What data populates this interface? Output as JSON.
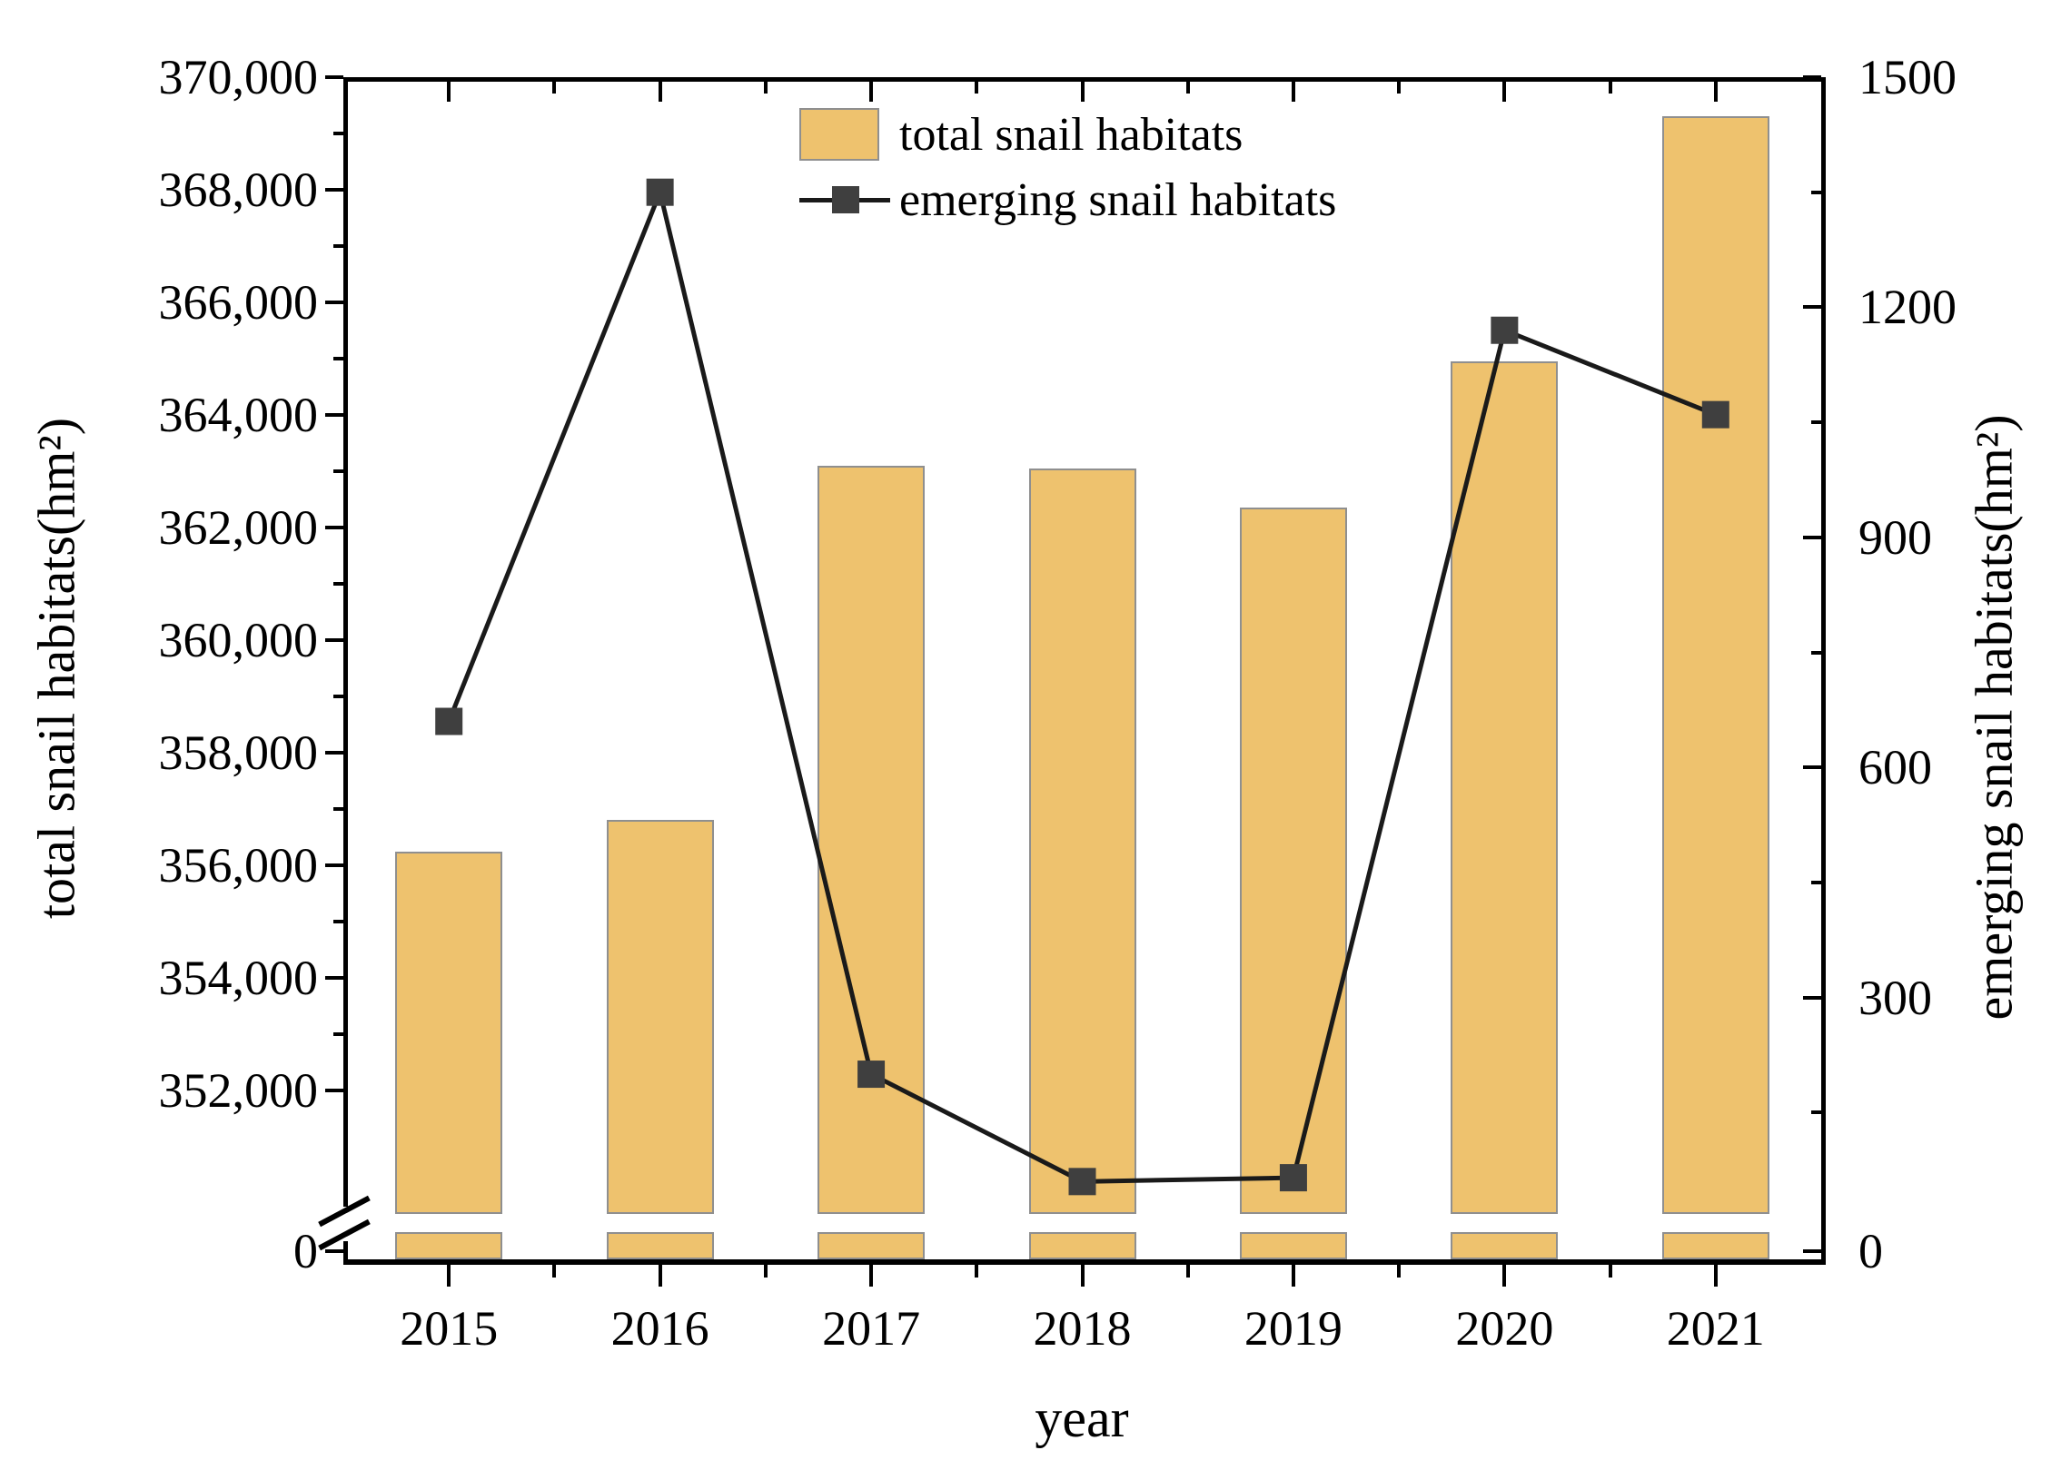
{
  "legend": {
    "items": [
      {
        "label": "total snail habitats",
        "swatch": "bar"
      },
      {
        "label": "emerging snail habitats",
        "swatch": "line-square-marker"
      }
    ]
  },
  "chart_data": {
    "type": "bar+line",
    "categories": [
      "2015",
      "2016",
      "2017",
      "2018",
      "2019",
      "2020",
      "2021"
    ],
    "series": [
      {
        "name": "total snail habitats",
        "type": "bar",
        "axis": "left",
        "color": "#eec26e",
        "edge_color": "#8f8f8f",
        "values": [
          356250,
          356800,
          363100,
          363050,
          362350,
          364950,
          369300
        ]
      },
      {
        "name": "emerging snail habitats",
        "type": "line",
        "axis": "right",
        "color": "#1a1a1a",
        "marker": "square",
        "marker_color": "#3f3f3f",
        "values": [
          660,
          1350,
          200,
          60,
          65,
          1170,
          1060
        ]
      }
    ],
    "left_axis": {
      "title": "total snail habitats(hm²)",
      "range": [
        352000,
        370000
      ],
      "zero_label": "0",
      "axis_break": {
        "between": [
          0,
          352000
        ]
      },
      "major_ticks": [
        {
          "value": 352000,
          "label": "352,000"
        },
        {
          "value": 354000,
          "label": "354,000"
        },
        {
          "value": 356000,
          "label": "356,000"
        },
        {
          "value": 358000,
          "label": "358,000"
        },
        {
          "value": 360000,
          "label": "360,000"
        },
        {
          "value": 362000,
          "label": "362,000"
        },
        {
          "value": 364000,
          "label": "364,000"
        },
        {
          "value": 366000,
          "label": "366,000"
        },
        {
          "value": 368000,
          "label": "368,000"
        },
        {
          "value": 370000,
          "label": "370,000"
        }
      ],
      "minor_values": [
        353000,
        355000,
        357000,
        359000,
        361000,
        363000,
        365000,
        367000,
        369000
      ]
    },
    "right_axis": {
      "title": "emerging snail habitats(hm²)",
      "range": [
        0,
        1500
      ],
      "zero_label": "0",
      "major_ticks": [
        {
          "value": 300,
          "label": "300"
        },
        {
          "value": 600,
          "label": "600"
        },
        {
          "value": 900,
          "label": "900"
        },
        {
          "value": 1200,
          "label": "1200"
        },
        {
          "value": 1500,
          "label": "1500"
        }
      ],
      "minor_values": [
        150,
        450,
        750,
        1050,
        1350
      ]
    },
    "x_axis": {
      "title": "year"
    },
    "grid": false,
    "legend_position": "inside-top-center"
  }
}
